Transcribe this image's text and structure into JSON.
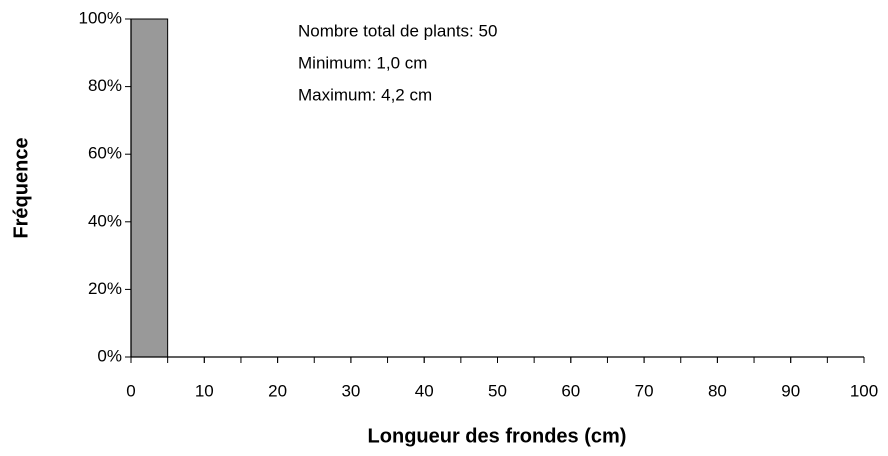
{
  "chart_data": {
    "type": "histogram",
    "xlabel": "Longueur des frondes (cm)",
    "ylabel": "Fréquence",
    "annotations": [
      "Nombre total de plants: 50",
      "Minimum: 1,0 cm",
      "Maximum: 4,2 cm"
    ],
    "bins": [
      0,
      5,
      10,
      15,
      20,
      25,
      30,
      35,
      40,
      45,
      50,
      55,
      60,
      65,
      70,
      75,
      80,
      85,
      90,
      95,
      100
    ],
    "values": [
      100,
      0,
      0,
      0,
      0,
      0,
      0,
      0,
      0,
      0,
      0,
      0,
      0,
      0,
      0,
      0,
      0,
      0,
      0,
      0
    ],
    "color": "#999999",
    "xlim": [
      0,
      100
    ],
    "xticks": [
      0,
      10,
      20,
      30,
      40,
      50,
      60,
      70,
      80,
      90,
      100
    ],
    "ylim": [
      0,
      100
    ],
    "yticks": [
      {
        "value": 0,
        "label": "0%"
      },
      {
        "value": 20,
        "label": "20%"
      },
      {
        "value": 40,
        "label": "40%"
      },
      {
        "value": 60,
        "label": "60%"
      },
      {
        "value": 80,
        "label": "80%"
      },
      {
        "value": 100,
        "label": "100%"
      }
    ],
    "grid": false
  }
}
